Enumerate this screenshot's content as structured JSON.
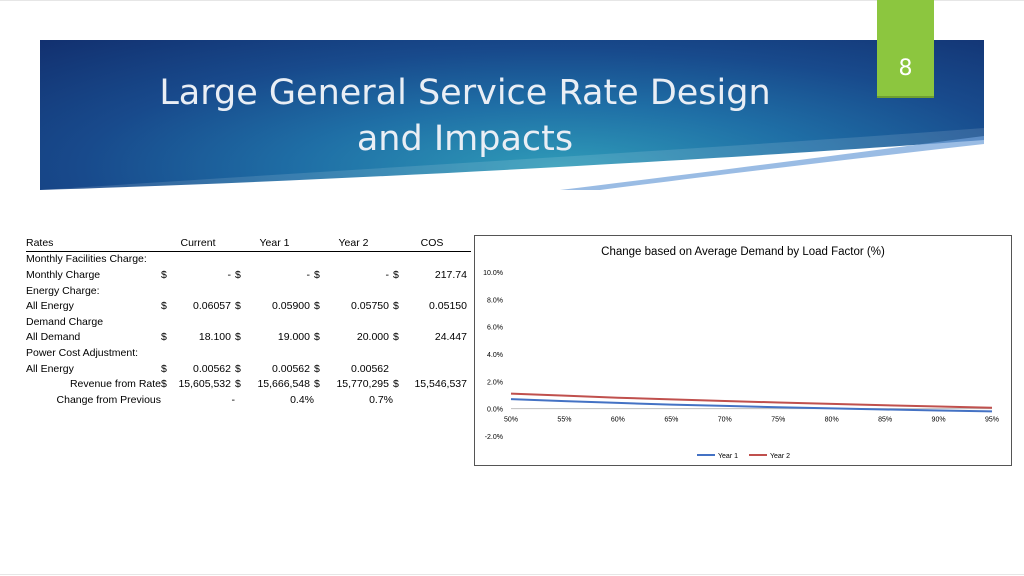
{
  "slide": {
    "title_line1": "Large General Service Rate Design",
    "title_line2": "and Impacts",
    "page_number": "8"
  },
  "table": {
    "headers": [
      "Rates",
      "Current",
      "Year 1",
      "Year 2",
      "COS"
    ],
    "monthly_facilities_label": "Monthly Facilities Charge:",
    "monthly_charge_label": "Monthly Charge",
    "monthly_charge": {
      "current": "-",
      "year1": "-",
      "year2": "-",
      "cos": "217.74"
    },
    "energy_label": "Energy Charge:",
    "all_energy_label": "All Energy",
    "energy": {
      "current": "0.06057",
      "year1": "0.05900",
      "year2": "0.05750",
      "cos": "0.05150"
    },
    "demand_label": "Demand Charge",
    "all_demand_label": "All Demand",
    "demand": {
      "current": "18.100",
      "year1": "19.000",
      "year2": "20.000",
      "cos": "24.447"
    },
    "pca_label": "Power Cost Adjustment:",
    "pca_energy_label": "All Energy",
    "pca": {
      "current": "0.00562",
      "year1": "0.00562",
      "year2": "0.00562"
    },
    "revenue_label": "Revenue from Rate",
    "revenue": {
      "current": "15,605,532",
      "year1": "15,666,548",
      "year2": "15,770,295",
      "cos": "15,546,537"
    },
    "change_label": "Change from Previous",
    "change": {
      "current": "-",
      "year1": "0.4%",
      "year2": "0.7%"
    },
    "dollar": "$"
  },
  "chart_data": {
    "type": "line",
    "title": "Change based on Average Demand by Load Factor (%)",
    "x": [
      "50%",
      "55%",
      "60%",
      "65%",
      "70%",
      "75%",
      "80%",
      "85%",
      "90%",
      "95%"
    ],
    "y_ticks": [
      "10.0%",
      "8.0%",
      "6.0%",
      "4.0%",
      "2.0%",
      "0.0%",
      "-2.0%"
    ],
    "ylim": [
      -2.0,
      10.0
    ],
    "series": [
      {
        "name": "Year 1",
        "color": "#4472c4",
        "values": [
          0.7,
          0.55,
          0.42,
          0.3,
          0.2,
          0.1,
          0.02,
          -0.06,
          -0.13,
          -0.2
        ]
      },
      {
        "name": "Year 2",
        "color": "#c0504d",
        "values": [
          1.1,
          0.95,
          0.8,
          0.68,
          0.56,
          0.45,
          0.35,
          0.25,
          0.16,
          0.07
        ]
      }
    ],
    "legend": "bottom",
    "grid": false
  }
}
